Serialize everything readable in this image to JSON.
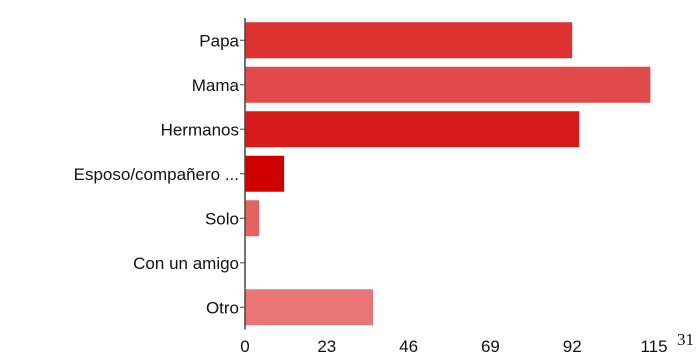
{
  "chart_data": {
    "type": "bar",
    "orientation": "horizontal",
    "categories": [
      "Papa",
      "Mama",
      "Hermanos",
      "Esposo/compañero ...",
      "Solo",
      "Con un amigo",
      "Otro"
    ],
    "values": [
      92,
      114,
      94,
      11,
      4,
      0,
      36
    ],
    "xlim": [
      0,
      115
    ],
    "xticks": [
      "0",
      "23",
      "46",
      "69",
      "92",
      "115"
    ],
    "extra_label": "31",
    "grid": false,
    "legend": "none",
    "colors": [
      "#dc3131",
      "#e04a4a",
      "#d61a1a",
      "#d00000",
      "#e56262",
      "#e86f6f",
      "#e87676"
    ]
  }
}
